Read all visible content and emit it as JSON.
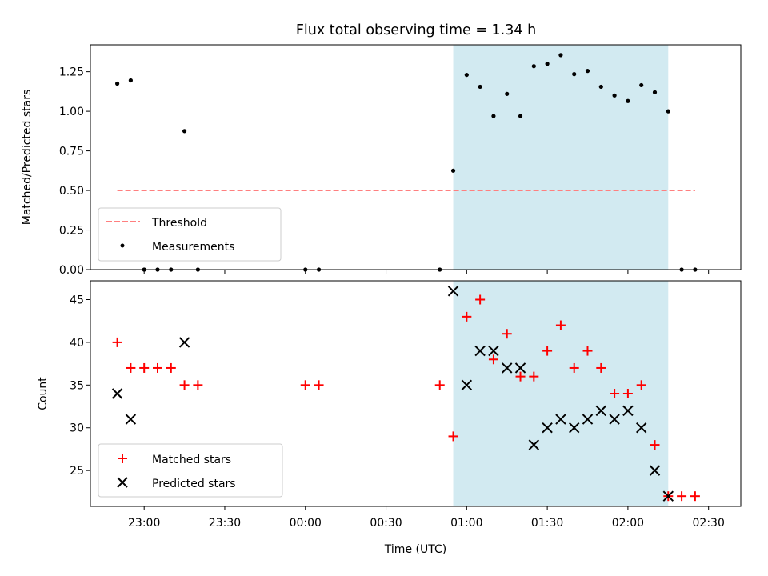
{
  "chart_data": {
    "title": "Flux total observing time = 1.34 h",
    "xlabel": "Time (UTC)",
    "x_unit": "minutes relative to 00:00 UTC (negative = previous day)",
    "xlim": [
      -80,
      162
    ],
    "xticks": [
      {
        "value": -60,
        "label": "23:00"
      },
      {
        "value": -30,
        "label": "23:30"
      },
      {
        "value": 0,
        "label": "00:00"
      },
      {
        "value": 30,
        "label": "00:30"
      },
      {
        "value": 60,
        "label": "01:00"
      },
      {
        "value": 90,
        "label": "01:30"
      },
      {
        "value": 120,
        "label": "02:00"
      },
      {
        "value": 150,
        "label": "02:30"
      }
    ],
    "shaded_span": {
      "x": [
        55,
        135
      ],
      "color": "#add8e6"
    },
    "panels": [
      {
        "type": "scatter",
        "ylabel": "Matched/Predicted stars",
        "ylim": [
          0,
          1.42
        ],
        "yticks": [
          {
            "value": 0,
            "label": "0.00"
          },
          {
            "value": 0.25,
            "label": "0.25"
          },
          {
            "value": 0.5,
            "label": "0.50"
          },
          {
            "value": 0.75,
            "label": "0.75"
          },
          {
            "value": 1.0,
            "label": "1.00"
          },
          {
            "value": 1.25,
            "label": "1.25"
          }
        ],
        "threshold": {
          "name": "Threshold",
          "y": 0.5,
          "x": [
            -70,
            145
          ],
          "color": "#ff7f7f"
        },
        "series": [
          {
            "name": "Measurements",
            "color": "#000000",
            "points": [
              [
                -70,
                1.175
              ],
              [
                -65,
                1.195
              ],
              [
                -60,
                0
              ],
              [
                -55,
                0
              ],
              [
                -50,
                0
              ],
              [
                -45,
                0.875
              ],
              [
                -40,
                0
              ],
              [
                0,
                0
              ],
              [
                5,
                0
              ],
              [
                50,
                0
              ],
              [
                55,
                0.625
              ],
              [
                60,
                1.23
              ],
              [
                65,
                1.155
              ],
              [
                70,
                0.97
              ],
              [
                75,
                1.11
              ],
              [
                80,
                0.97
              ],
              [
                85,
                1.285
              ],
              [
                90,
                1.3
              ],
              [
                95,
                1.355
              ],
              [
                100,
                1.235
              ],
              [
                105,
                1.255
              ],
              [
                110,
                1.155
              ],
              [
                115,
                1.1
              ],
              [
                120,
                1.065
              ],
              [
                125,
                1.165
              ],
              [
                130,
                1.12
              ],
              [
                135,
                1.0
              ],
              [
                140,
                0
              ],
              [
                145,
                0
              ]
            ]
          }
        ],
        "legend": {
          "position": "lower-left",
          "entries": [
            "Threshold",
            "Measurements"
          ]
        }
      },
      {
        "type": "scatter",
        "ylabel": "Count",
        "ylim": [
          20.8,
          47.2
        ],
        "yticks": [
          {
            "value": 25,
            "label": "25"
          },
          {
            "value": 30,
            "label": "30"
          },
          {
            "value": 35,
            "label": "35"
          },
          {
            "value": 40,
            "label": "40"
          },
          {
            "value": 45,
            "label": "45"
          }
        ],
        "series": [
          {
            "name": "Matched stars",
            "marker": "plus",
            "color": "#ff0000",
            "points": [
              [
                -70,
                40
              ],
              [
                -65,
                37
              ],
              [
                -60,
                37
              ],
              [
                -55,
                37
              ],
              [
                -50,
                37
              ],
              [
                -45,
                35
              ],
              [
                -40,
                35
              ],
              [
                0,
                35
              ],
              [
                5,
                35
              ],
              [
                50,
                35
              ],
              [
                55,
                29
              ],
              [
                60,
                43
              ],
              [
                65,
                45
              ],
              [
                70,
                38
              ],
              [
                75,
                41
              ],
              [
                80,
                36
              ],
              [
                85,
                36
              ],
              [
                90,
                39
              ],
              [
                95,
                42
              ],
              [
                100,
                37
              ],
              [
                105,
                39
              ],
              [
                110,
                37
              ],
              [
                115,
                34
              ],
              [
                120,
                34
              ],
              [
                125,
                35
              ],
              [
                130,
                28
              ],
              [
                135,
                22
              ],
              [
                140,
                22
              ],
              [
                145,
                22
              ]
            ]
          },
          {
            "name": "Predicted stars",
            "marker": "x",
            "color": "#000000",
            "points": [
              [
                -70,
                34
              ],
              [
                -65,
                31
              ],
              [
                -45,
                40
              ],
              [
                55,
                46
              ],
              [
                60,
                35
              ],
              [
                65,
                39
              ],
              [
                70,
                39
              ],
              [
                75,
                37
              ],
              [
                80,
                37
              ],
              [
                85,
                28
              ],
              [
                90,
                30
              ],
              [
                95,
                31
              ],
              [
                100,
                30
              ],
              [
                105,
                31
              ],
              [
                110,
                32
              ],
              [
                115,
                31
              ],
              [
                120,
                32
              ],
              [
                125,
                30
              ],
              [
                130,
                25
              ],
              [
                135,
                22
              ]
            ]
          }
        ],
        "legend": {
          "position": "lower-left",
          "entries": [
            "Matched stars",
            "Predicted stars"
          ]
        }
      }
    ]
  }
}
